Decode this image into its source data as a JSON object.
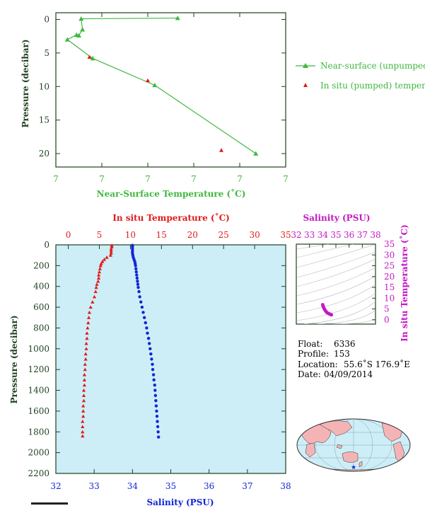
{
  "colors": {
    "axis": "#1e3f1e",
    "green": "#3fb83f",
    "red": "#e11b1b",
    "blue": "#1126d6",
    "magenta": "#c418c4",
    "panel_bg": "#cdeef7"
  },
  "chart_data": [
    {
      "type": "line",
      "xlabel": "Near-Surface Temperature (˚C)",
      "ylabel": "Pressure (decibar)",
      "x_ticks": [
        "7",
        "7",
        "7",
        "7",
        "7",
        "7"
      ],
      "y_ticks": [
        "0",
        "5",
        "10",
        "15",
        "20"
      ],
      "ylim": [
        22,
        -1
      ],
      "xlim": [
        0,
        5
      ],
      "series": [
        {
          "name": "Near-surface (unpumped) temperature.",
          "points": [
            {
              "x": 2.65,
              "y": -0.2
            },
            {
              "x": 0.55,
              "y": -0.1
            },
            {
              "x": 0.58,
              "y": 1.5
            },
            {
              "x": 0.5,
              "y": 2.4
            },
            {
              "x": 0.45,
              "y": 2.3
            },
            {
              "x": 0.25,
              "y": 3.0
            },
            {
              "x": 0.8,
              "y": 5.8
            },
            {
              "x": 2.15,
              "y": 9.8
            },
            {
              "x": 4.35,
              "y": 20.0
            }
          ]
        },
        {
          "name": "In situ (pumped) temperature.",
          "points": [
            {
              "x": 0.73,
              "y": 5.6
            },
            {
              "x": 2.0,
              "y": 9.1
            },
            {
              "x": 3.6,
              "y": 19.5
            }
          ]
        }
      ]
    },
    {
      "type": "scatter",
      "title": "In situ Temperature (˚C)",
      "xlabel": "Salinity (PSU)",
      "ylabel": "Pressure (decibar)",
      "temp_ticks": [
        "0",
        "5",
        "10",
        "15",
        "20",
        "25",
        "30",
        "35"
      ],
      "sal_ticks": [
        "32",
        "33",
        "34",
        "35",
        "36",
        "37",
        "38"
      ],
      "pressure_ticks": [
        "0",
        "200",
        "400",
        "600",
        "800",
        "1000",
        "1200",
        "1400",
        "1600",
        "1800",
        "2000",
        "2200"
      ],
      "temp_lim": [
        -2,
        35
      ],
      "sal_lim": [
        32,
        38
      ],
      "ylim": [
        2200,
        0
      ],
      "series": [
        {
          "name": "temperature",
          "points": [
            {
              "x": 7.0,
              "y": 5
            },
            {
              "x": 7.0,
              "y": 20
            },
            {
              "x": 6.9,
              "y": 40
            },
            {
              "x": 6.9,
              "y": 60
            },
            {
              "x": 6.9,
              "y": 80
            },
            {
              "x": 6.8,
              "y": 100
            },
            {
              "x": 6.2,
              "y": 120
            },
            {
              "x": 5.8,
              "y": 140
            },
            {
              "x": 5.5,
              "y": 160
            },
            {
              "x": 5.3,
              "y": 180
            },
            {
              "x": 5.2,
              "y": 200
            },
            {
              "x": 5.1,
              "y": 230
            },
            {
              "x": 5.0,
              "y": 260
            },
            {
              "x": 4.9,
              "y": 290
            },
            {
              "x": 4.9,
              "y": 320
            },
            {
              "x": 4.8,
              "y": 350
            },
            {
              "x": 4.6,
              "y": 380
            },
            {
              "x": 4.5,
              "y": 410
            },
            {
              "x": 4.4,
              "y": 450
            },
            {
              "x": 4.2,
              "y": 500
            },
            {
              "x": 3.9,
              "y": 550
            },
            {
              "x": 3.6,
              "y": 600
            },
            {
              "x": 3.4,
              "y": 650
            },
            {
              "x": 3.3,
              "y": 700
            },
            {
              "x": 3.2,
              "y": 750
            },
            {
              "x": 3.1,
              "y": 800
            },
            {
              "x": 3.0,
              "y": 850
            },
            {
              "x": 3.0,
              "y": 900
            },
            {
              "x": 2.9,
              "y": 950
            },
            {
              "x": 2.9,
              "y": 1000
            },
            {
              "x": 2.8,
              "y": 1050
            },
            {
              "x": 2.8,
              "y": 1100
            },
            {
              "x": 2.7,
              "y": 1150
            },
            {
              "x": 2.7,
              "y": 1200
            },
            {
              "x": 2.6,
              "y": 1250
            },
            {
              "x": 2.6,
              "y": 1300
            },
            {
              "x": 2.6,
              "y": 1350
            },
            {
              "x": 2.5,
              "y": 1400
            },
            {
              "x": 2.5,
              "y": 1450
            },
            {
              "x": 2.5,
              "y": 1500
            },
            {
              "x": 2.4,
              "y": 1550
            },
            {
              "x": 2.4,
              "y": 1600
            },
            {
              "x": 2.4,
              "y": 1650
            },
            {
              "x": 2.3,
              "y": 1700
            },
            {
              "x": 2.3,
              "y": 1750
            },
            {
              "x": 2.3,
              "y": 1800
            },
            {
              "x": 2.3,
              "y": 1840
            }
          ]
        },
        {
          "name": "salinity",
          "points": [
            {
              "x": 34.0,
              "y": 5
            },
            {
              "x": 34.0,
              "y": 20
            },
            {
              "x": 34.0,
              "y": 40
            },
            {
              "x": 34.0,
              "y": 60
            },
            {
              "x": 34.0,
              "y": 80
            },
            {
              "x": 34.01,
              "y": 100
            },
            {
              "x": 34.02,
              "y": 120
            },
            {
              "x": 34.04,
              "y": 140
            },
            {
              "x": 34.06,
              "y": 160
            },
            {
              "x": 34.07,
              "y": 180
            },
            {
              "x": 34.08,
              "y": 200
            },
            {
              "x": 34.09,
              "y": 230
            },
            {
              "x": 34.1,
              "y": 260
            },
            {
              "x": 34.11,
              "y": 290
            },
            {
              "x": 34.12,
              "y": 320
            },
            {
              "x": 34.13,
              "y": 350
            },
            {
              "x": 34.14,
              "y": 380
            },
            {
              "x": 34.15,
              "y": 410
            },
            {
              "x": 34.17,
              "y": 450
            },
            {
              "x": 34.19,
              "y": 500
            },
            {
              "x": 34.22,
              "y": 550
            },
            {
              "x": 34.25,
              "y": 600
            },
            {
              "x": 34.28,
              "y": 650
            },
            {
              "x": 34.31,
              "y": 700
            },
            {
              "x": 34.34,
              "y": 750
            },
            {
              "x": 34.37,
              "y": 800
            },
            {
              "x": 34.39,
              "y": 850
            },
            {
              "x": 34.42,
              "y": 900
            },
            {
              "x": 34.44,
              "y": 950
            },
            {
              "x": 34.46,
              "y": 1000
            },
            {
              "x": 34.48,
              "y": 1050
            },
            {
              "x": 34.5,
              "y": 1100
            },
            {
              "x": 34.52,
              "y": 1150
            },
            {
              "x": 34.53,
              "y": 1200
            },
            {
              "x": 34.55,
              "y": 1250
            },
            {
              "x": 34.56,
              "y": 1300
            },
            {
              "x": 34.58,
              "y": 1350
            },
            {
              "x": 34.59,
              "y": 1400
            },
            {
              "x": 34.6,
              "y": 1450
            },
            {
              "x": 34.61,
              "y": 1500
            },
            {
              "x": 34.62,
              "y": 1550
            },
            {
              "x": 34.63,
              "y": 1600
            },
            {
              "x": 34.64,
              "y": 1650
            },
            {
              "x": 34.65,
              "y": 1700
            },
            {
              "x": 34.66,
              "y": 1750
            },
            {
              "x": 34.67,
              "y": 1800
            },
            {
              "x": 34.68,
              "y": 1850
            }
          ]
        }
      ]
    },
    {
      "type": "scatter",
      "title": "Salinity (PSU)",
      "ylabel": "In situ Temperature (˚C)",
      "x_ticks": [
        "32",
        "33",
        "34",
        "35",
        "36",
        "37",
        "38"
      ],
      "y_ticks": [
        "0",
        "5",
        "10",
        "15",
        "20",
        "25",
        "30",
        "35"
      ],
      "xlim": [
        32,
        38
      ],
      "ylim": [
        -2,
        35
      ],
      "points": [
        {
          "x": 34.0,
          "y": 7.0
        },
        {
          "x": 34.02,
          "y": 6.5
        },
        {
          "x": 34.05,
          "y": 6.0
        },
        {
          "x": 34.09,
          "y": 5.4
        },
        {
          "x": 34.12,
          "y": 5.0
        },
        {
          "x": 34.16,
          "y": 4.6
        },
        {
          "x": 34.22,
          "y": 4.1
        },
        {
          "x": 34.28,
          "y": 3.6
        },
        {
          "x": 34.35,
          "y": 3.2
        },
        {
          "x": 34.42,
          "y": 3.0
        },
        {
          "x": 34.48,
          "y": 2.8
        },
        {
          "x": 34.54,
          "y": 2.6
        },
        {
          "x": 34.6,
          "y": 2.5
        },
        {
          "x": 34.66,
          "y": 2.3
        }
      ]
    }
  ],
  "float_info": {
    "float_label": "Float:",
    "float_value": "6336",
    "profile_label": "Profile:",
    "profile_value": "153",
    "location_label": "Location:",
    "location_value": "55.6˚S  176.9˚E",
    "date_label": "Date:",
    "date_value": "04/09/2014"
  },
  "map": {
    "location": {
      "lat": -55.6,
      "lon": 176.9
    }
  }
}
